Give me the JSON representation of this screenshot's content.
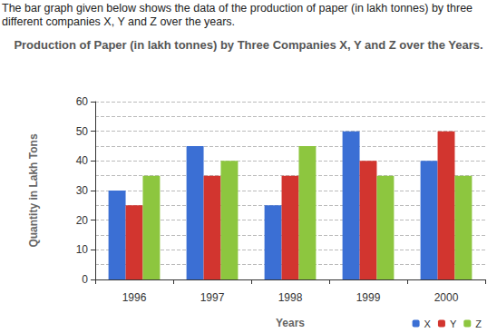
{
  "intro": "The bar graph given below shows the data of the production of paper (in lakh tonnes) by three different companies X, Y and Z over the years.",
  "chart_data": {
    "type": "bar",
    "title": "Production of Paper (in lakh tonnes) by Three Companies X, Y and Z over the Years.",
    "x_label": "Years",
    "y_label": "Quantity in Lakh Tons",
    "categories": [
      "1996",
      "1997",
      "1998",
      "1999",
      "2000"
    ],
    "series": [
      {
        "name": "X",
        "color": "#3b6fd4",
        "values": [
          30,
          45,
          25,
          50,
          40
        ]
      },
      {
        "name": "Y",
        "color": "#d2352f",
        "values": [
          25,
          35,
          35,
          40,
          50
        ]
      },
      {
        "name": "Z",
        "color": "#8dc63f",
        "values": [
          35,
          40,
          45,
          35,
          35
        ]
      }
    ],
    "ylim": [
      0,
      60
    ],
    "yticks": [
      0,
      10,
      20,
      30,
      40,
      50,
      60
    ],
    "grid": true,
    "legend": "bottom-right"
  }
}
